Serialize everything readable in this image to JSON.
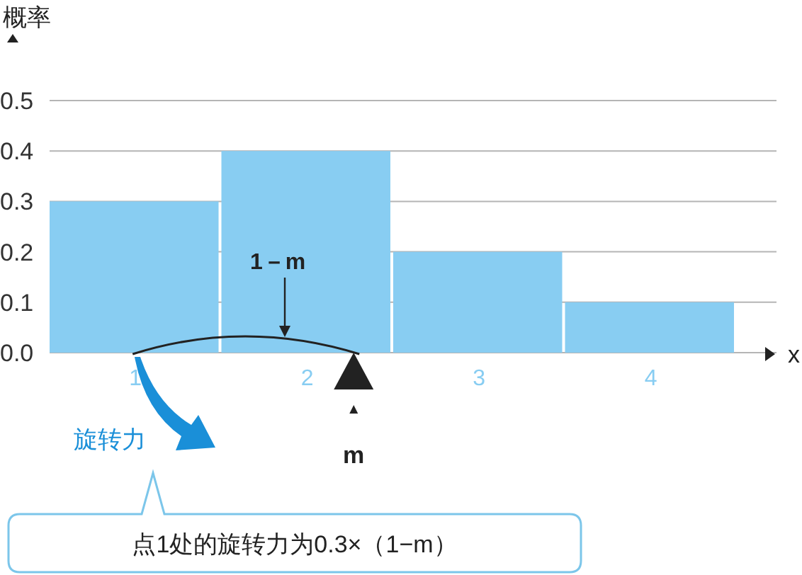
{
  "chart_data": {
    "type": "bar",
    "categories": [
      "1",
      "2",
      "3",
      "4"
    ],
    "values": [
      0.3,
      0.4,
      0.2,
      0.1
    ],
    "color": "#88cdf2",
    "ylim": [
      0,
      0.5
    ],
    "yticks": [
      {
        "value": 0,
        "label": "0.0"
      },
      0.1,
      0.2,
      0.3,
      0.4,
      0.5
    ],
    "grid": "y",
    "xlabel": "x",
    "ylabel": "概率",
    "annotations": [
      "1－m",
      "m",
      "旋转力",
      "点1处的旋转力为0.3×（1−m）"
    ]
  }
}
